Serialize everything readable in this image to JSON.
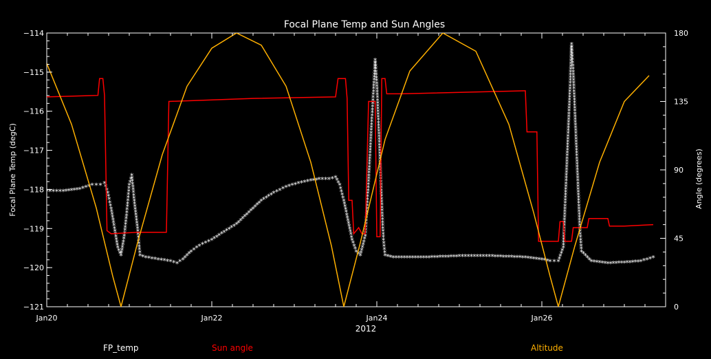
{
  "chart_data": {
    "type": "line",
    "title": "Focal Plane Temp and Sun Angles",
    "xlabel": "2012",
    "ylabel_left": "Focal Plane Temp (degC)",
    "ylabel_right": "Angle (degrees)",
    "xlim_days": [
      20.0,
      27.5
    ],
    "ylim_left": [
      -121,
      -114
    ],
    "ylim_right": [
      0,
      180
    ],
    "x_ticks": [
      {
        "day": 20,
        "label": "Jan20"
      },
      {
        "day": 22,
        "label": "Jan22"
      },
      {
        "day": 24,
        "label": "Jan24"
      },
      {
        "day": 26,
        "label": "Jan26"
      }
    ],
    "y_ticks_left": [
      -114,
      -115,
      -116,
      -117,
      -118,
      -119,
      -120,
      -121
    ],
    "y_ticks_right": [
      180,
      135,
      90,
      45,
      0
    ],
    "grid": false,
    "legend_position": "bottom",
    "legend": [
      {
        "label": "FP_temp",
        "color": "#ffffff"
      },
      {
        "label": "Sun angle",
        "color": "#ff0000"
      },
      {
        "label": "Altitude",
        "color": "#ffb000"
      }
    ],
    "series": [
      {
        "name": "FP_temp",
        "axis": "left",
        "style": "asterisk",
        "color": "#ffffff",
        "points": [
          [
            20.0,
            -118.05
          ],
          [
            20.2,
            -118.05
          ],
          [
            20.4,
            -118.0
          ],
          [
            20.55,
            -117.9
          ],
          [
            20.65,
            -117.9
          ],
          [
            20.7,
            -117.85
          ],
          [
            20.74,
            -118.1
          ],
          [
            20.78,
            -118.5
          ],
          [
            20.82,
            -119.0
          ],
          [
            20.86,
            -119.5
          ],
          [
            20.9,
            -119.7
          ],
          [
            20.94,
            -119.2
          ],
          [
            20.97,
            -118.6
          ],
          [
            21.0,
            -117.9
          ],
          [
            21.03,
            -117.65
          ],
          [
            21.06,
            -118.3
          ],
          [
            21.1,
            -119.0
          ],
          [
            21.13,
            -119.7
          ],
          [
            21.2,
            -119.75
          ],
          [
            21.35,
            -119.8
          ],
          [
            21.5,
            -119.85
          ],
          [
            21.58,
            -119.9
          ],
          [
            21.65,
            -119.8
          ],
          [
            21.75,
            -119.6
          ],
          [
            21.85,
            -119.45
          ],
          [
            22.0,
            -119.3
          ],
          [
            22.15,
            -119.1
          ],
          [
            22.3,
            -118.9
          ],
          [
            22.45,
            -118.6
          ],
          [
            22.6,
            -118.3
          ],
          [
            22.75,
            -118.1
          ],
          [
            22.9,
            -117.95
          ],
          [
            23.05,
            -117.85
          ],
          [
            23.2,
            -117.78
          ],
          [
            23.3,
            -117.75
          ],
          [
            23.42,
            -117.75
          ],
          [
            23.5,
            -117.7
          ],
          [
            23.55,
            -117.9
          ],
          [
            23.6,
            -118.3
          ],
          [
            23.65,
            -118.8
          ],
          [
            23.7,
            -119.3
          ],
          [
            23.75,
            -119.6
          ],
          [
            23.8,
            -119.7
          ],
          [
            23.86,
            -119.2
          ],
          [
            23.88,
            -118.5
          ],
          [
            23.9,
            -117.8
          ],
          [
            23.92,
            -117.0
          ],
          [
            23.94,
            -116.2
          ],
          [
            23.96,
            -115.5
          ],
          [
            23.98,
            -114.7
          ],
          [
            24.0,
            -115.3
          ],
          [
            24.02,
            -116.3
          ],
          [
            24.04,
            -117.3
          ],
          [
            24.06,
            -118.4
          ],
          [
            24.08,
            -119.3
          ],
          [
            24.1,
            -119.7
          ],
          [
            24.2,
            -119.75
          ],
          [
            24.6,
            -119.75
          ],
          [
            25.0,
            -119.72
          ],
          [
            25.4,
            -119.72
          ],
          [
            25.8,
            -119.75
          ],
          [
            26.0,
            -119.8
          ],
          [
            26.1,
            -119.85
          ],
          [
            26.2,
            -119.85
          ],
          [
            26.26,
            -119.5
          ],
          [
            26.28,
            -118.5
          ],
          [
            26.3,
            -117.5
          ],
          [
            26.32,
            -116.5
          ],
          [
            26.34,
            -115.5
          ],
          [
            26.36,
            -114.3
          ],
          [
            26.38,
            -115.0
          ],
          [
            26.4,
            -116.0
          ],
          [
            26.42,
            -117.0
          ],
          [
            26.44,
            -118.0
          ],
          [
            26.46,
            -119.0
          ],
          [
            26.48,
            -119.6
          ],
          [
            26.6,
            -119.85
          ],
          [
            26.8,
            -119.9
          ],
          [
            27.0,
            -119.88
          ],
          [
            27.2,
            -119.85
          ],
          [
            27.35,
            -119.75
          ]
        ]
      },
      {
        "name": "Sun angle",
        "axis": "right",
        "style": "line",
        "color": "#ff0000",
        "points": [
          [
            20.0,
            138
          ],
          [
            20.62,
            139
          ],
          [
            20.64,
            150
          ],
          [
            20.68,
            150
          ],
          [
            20.7,
            139
          ],
          [
            20.73,
            50
          ],
          [
            20.78,
            48
          ],
          [
            21.1,
            49
          ],
          [
            21.45,
            49
          ],
          [
            21.48,
            135
          ],
          [
            22.5,
            137
          ],
          [
            23.5,
            138
          ],
          [
            23.53,
            150
          ],
          [
            23.62,
            150
          ],
          [
            23.64,
            137
          ],
          [
            23.66,
            70
          ],
          [
            23.7,
            70
          ],
          [
            23.72,
            48
          ],
          [
            23.78,
            52
          ],
          [
            23.82,
            48
          ],
          [
            23.86,
            48
          ],
          [
            23.9,
            135
          ],
          [
            23.98,
            135
          ],
          [
            24.0,
            46
          ],
          [
            24.04,
            46
          ],
          [
            24.06,
            150
          ],
          [
            24.1,
            150
          ],
          [
            24.12,
            140
          ],
          [
            24.3,
            140
          ],
          [
            25.8,
            142
          ],
          [
            25.82,
            115
          ],
          [
            25.94,
            115
          ],
          [
            25.96,
            43
          ],
          [
            26.2,
            43
          ],
          [
            26.22,
            56
          ],
          [
            26.26,
            56
          ],
          [
            26.28,
            43
          ],
          [
            26.36,
            43
          ],
          [
            26.38,
            52
          ],
          [
            26.55,
            52
          ],
          [
            26.57,
            58
          ],
          [
            26.8,
            58
          ],
          [
            26.82,
            53
          ],
          [
            27.0,
            53
          ],
          [
            27.35,
            54
          ]
        ]
      },
      {
        "name": "Altitude",
        "axis": "right",
        "style": "line",
        "color": "#ffb000",
        "points": [
          [
            20.0,
            160
          ],
          [
            20.3,
            120
          ],
          [
            20.6,
            65
          ],
          [
            20.8,
            20
          ],
          [
            20.9,
            0
          ],
          [
            21.1,
            42
          ],
          [
            21.4,
            100
          ],
          [
            21.7,
            145
          ],
          [
            22.0,
            170
          ],
          [
            22.3,
            180
          ],
          [
            22.6,
            172
          ],
          [
            22.9,
            145
          ],
          [
            23.2,
            95
          ],
          [
            23.45,
            40
          ],
          [
            23.6,
            0
          ],
          [
            23.8,
            42
          ],
          [
            24.1,
            110
          ],
          [
            24.4,
            155
          ],
          [
            24.8,
            180
          ],
          [
            25.2,
            168
          ],
          [
            25.6,
            120
          ],
          [
            25.9,
            62
          ],
          [
            26.1,
            20
          ],
          [
            26.2,
            0
          ],
          [
            26.4,
            40
          ],
          [
            26.7,
            95
          ],
          [
            27.0,
            135
          ],
          [
            27.3,
            152
          ]
        ]
      }
    ]
  }
}
